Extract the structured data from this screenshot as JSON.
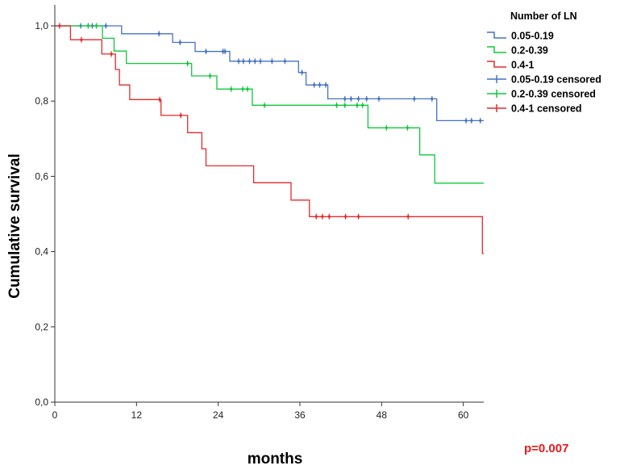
{
  "chart_data": {
    "type": "line",
    "subtype": "kaplan-meier",
    "xlabel": "months",
    "ylabel": "Cumulative survival",
    "xlim": [
      0,
      63
    ],
    "ylim": [
      0,
      1.0
    ],
    "xticks": [
      0,
      12,
      24,
      36,
      48,
      60
    ],
    "yticks": [
      0.0,
      0.2,
      0.4,
      0.6,
      0.8,
      1.0
    ],
    "ytick_labels": [
      "0,0",
      "0,2",
      "0,4",
      "0,6",
      "0,8",
      "1,0"
    ],
    "legend_title": "Number of LN",
    "legend_position": "top-right",
    "annotation": "p=0.007",
    "annotation_color": "#e8191a",
    "series": [
      {
        "name": "0.05-0.19",
        "censored_label": "0.05-0.19 censored",
        "color": "#4472c4",
        "steps": [
          [
            0,
            1.0
          ],
          [
            9.8,
            0.979
          ],
          [
            15.2,
            0.979
          ],
          [
            17.3,
            0.956
          ],
          [
            20.6,
            0.932
          ],
          [
            25.7,
            0.906
          ],
          [
            35.8,
            0.876
          ],
          [
            36.9,
            0.843
          ],
          [
            40.1,
            0.806
          ],
          [
            56.1,
            0.748
          ],
          [
            63,
            0.748
          ]
        ],
        "censored": [
          [
            3.8,
            1.0
          ],
          [
            5.5,
            1.0
          ],
          [
            7.5,
            1.0
          ],
          [
            15.3,
            0.979
          ],
          [
            18.4,
            0.956
          ],
          [
            22.2,
            0.932
          ],
          [
            24.7,
            0.932
          ],
          [
            25.0,
            0.932
          ],
          [
            27.0,
            0.906
          ],
          [
            27.7,
            0.906
          ],
          [
            28.6,
            0.906
          ],
          [
            29.4,
            0.906
          ],
          [
            30.2,
            0.906
          ],
          [
            31.9,
            0.906
          ],
          [
            33.8,
            0.906
          ],
          [
            36.3,
            0.876
          ],
          [
            38.1,
            0.843
          ],
          [
            38.9,
            0.843
          ],
          [
            39.8,
            0.843
          ],
          [
            42.6,
            0.806
          ],
          [
            43.5,
            0.806
          ],
          [
            44.6,
            0.806
          ],
          [
            45.8,
            0.806
          ],
          [
            47.6,
            0.806
          ],
          [
            52.8,
            0.806
          ],
          [
            55.4,
            0.806
          ],
          [
            60.4,
            0.748
          ],
          [
            61.2,
            0.748
          ],
          [
            62.5,
            0.748
          ]
        ]
      },
      {
        "name": "0.2-0.39",
        "censored_label": "0.2-0.39 censored",
        "color": "#10c83a",
        "steps": [
          [
            0,
            1.0
          ],
          [
            7.0,
            0.967
          ],
          [
            8.7,
            0.933
          ],
          [
            10.5,
            0.9
          ],
          [
            20.1,
            0.867
          ],
          [
            23.8,
            0.832
          ],
          [
            29.0,
            0.789
          ],
          [
            46.0,
            0.729
          ],
          [
            53.6,
            0.657
          ],
          [
            55.8,
            0.582
          ],
          [
            63,
            0.582
          ]
        ],
        "censored": [
          [
            4.9,
            1.0
          ],
          [
            6.1,
            1.0
          ],
          [
            19.5,
            0.9
          ],
          [
            22.8,
            0.867
          ],
          [
            25.9,
            0.832
          ],
          [
            27.6,
            0.832
          ],
          [
            28.3,
            0.832
          ],
          [
            30.8,
            0.789
          ],
          [
            41.4,
            0.789
          ],
          [
            42.6,
            0.789
          ],
          [
            44.4,
            0.789
          ],
          [
            45.2,
            0.789
          ],
          [
            48.7,
            0.729
          ],
          [
            51.8,
            0.729
          ]
        ]
      },
      {
        "name": "0.4-1",
        "censored_label": "0.4-1 censored",
        "color": "#e62a2a",
        "steps": [
          [
            0,
            1.0
          ],
          [
            2.3,
            0.963
          ],
          [
            6.9,
            0.925
          ],
          [
            8.9,
            0.884
          ],
          [
            9.5,
            0.843
          ],
          [
            11.0,
            0.804
          ],
          [
            15.6,
            0.762
          ],
          [
            19.5,
            0.716
          ],
          [
            21.6,
            0.673
          ],
          [
            22.2,
            0.628
          ],
          [
            29.2,
            0.583
          ],
          [
            34.7,
            0.537
          ],
          [
            37.4,
            0.493
          ],
          [
            62.8,
            0.395
          ],
          [
            63,
            0.395
          ]
        ],
        "censored": [
          [
            0.7,
            1.0
          ],
          [
            3.9,
            0.963
          ],
          [
            8.3,
            0.925
          ],
          [
            15.4,
            0.804
          ],
          [
            18.5,
            0.762
          ],
          [
            38.4,
            0.493
          ],
          [
            39.3,
            0.493
          ],
          [
            40.3,
            0.493
          ],
          [
            42.7,
            0.493
          ],
          [
            44.6,
            0.493
          ],
          [
            51.9,
            0.493
          ]
        ]
      }
    ]
  }
}
